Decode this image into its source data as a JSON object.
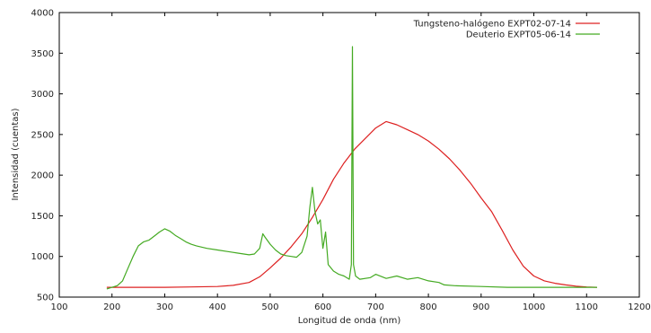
{
  "chart_data": {
    "type": "line",
    "title": "",
    "xlabel": "Longitud de onda (nm)",
    "ylabel": "Intensidad (cuentas)",
    "xlim": [
      100,
      1200
    ],
    "ylim": [
      500,
      4000
    ],
    "xticks": [
      100,
      200,
      300,
      400,
      500,
      600,
      700,
      800,
      900,
      1000,
      1100,
      1200
    ],
    "yticks": [
      500,
      1000,
      1500,
      2000,
      2500,
      3000,
      3500,
      4000
    ],
    "grid": false,
    "legend_position": "top-right",
    "series": [
      {
        "name": "Tungsteno-halógeno EXPT02-07-14",
        "color": "#dd2020",
        "x": [
          190,
          200,
          220,
          250,
          300,
          350,
          400,
          430,
          460,
          480,
          500,
          520,
          540,
          560,
          580,
          600,
          620,
          640,
          660,
          680,
          700,
          720,
          740,
          760,
          780,
          800,
          820,
          840,
          860,
          880,
          900,
          920,
          940,
          960,
          980,
          1000,
          1020,
          1040,
          1060,
          1080,
          1100,
          1120
        ],
        "y": [
          620,
          620,
          620,
          620,
          620,
          625,
          630,
          645,
          680,
          750,
          860,
          980,
          1120,
          1280,
          1480,
          1700,
          1950,
          2150,
          2320,
          2450,
          2580,
          2660,
          2620,
          2560,
          2500,
          2420,
          2320,
          2200,
          2060,
          1900,
          1720,
          1550,
          1320,
          1080,
          880,
          760,
          700,
          670,
          650,
          635,
          625,
          620
        ]
      },
      {
        "name": "Deuterio EXPT05-06-14",
        "color": "#44aa22",
        "x": [
          190,
          200,
          210,
          220,
          230,
          240,
          250,
          260,
          270,
          280,
          290,
          300,
          310,
          320,
          330,
          340,
          350,
          360,
          380,
          400,
          420,
          440,
          460,
          470,
          480,
          486,
          490,
          500,
          510,
          520,
          530,
          540,
          550,
          560,
          570,
          575,
          580,
          585,
          590,
          595,
          600,
          605,
          610,
          620,
          630,
          640,
          650,
          654,
          656,
          658,
          662,
          670,
          690,
          700,
          720,
          740,
          760,
          780,
          800,
          820,
          830,
          850,
          900,
          950,
          1000,
          1050,
          1100,
          1120
        ],
        "y": [
          600,
          620,
          640,
          700,
          850,
          1000,
          1130,
          1180,
          1200,
          1250,
          1300,
          1340,
          1310,
          1260,
          1220,
          1180,
          1150,
          1130,
          1100,
          1080,
          1060,
          1040,
          1020,
          1030,
          1100,
          1280,
          1240,
          1150,
          1080,
          1030,
          1010,
          1000,
          990,
          1050,
          1250,
          1600,
          1850,
          1550,
          1400,
          1450,
          1100,
          1300,
          900,
          820,
          780,
          760,
          720,
          900,
          3580,
          900,
          760,
          720,
          740,
          780,
          730,
          760,
          720,
          740,
          700,
          680,
          650,
          640,
          630,
          620,
          620,
          620,
          620,
          620
        ]
      }
    ]
  }
}
